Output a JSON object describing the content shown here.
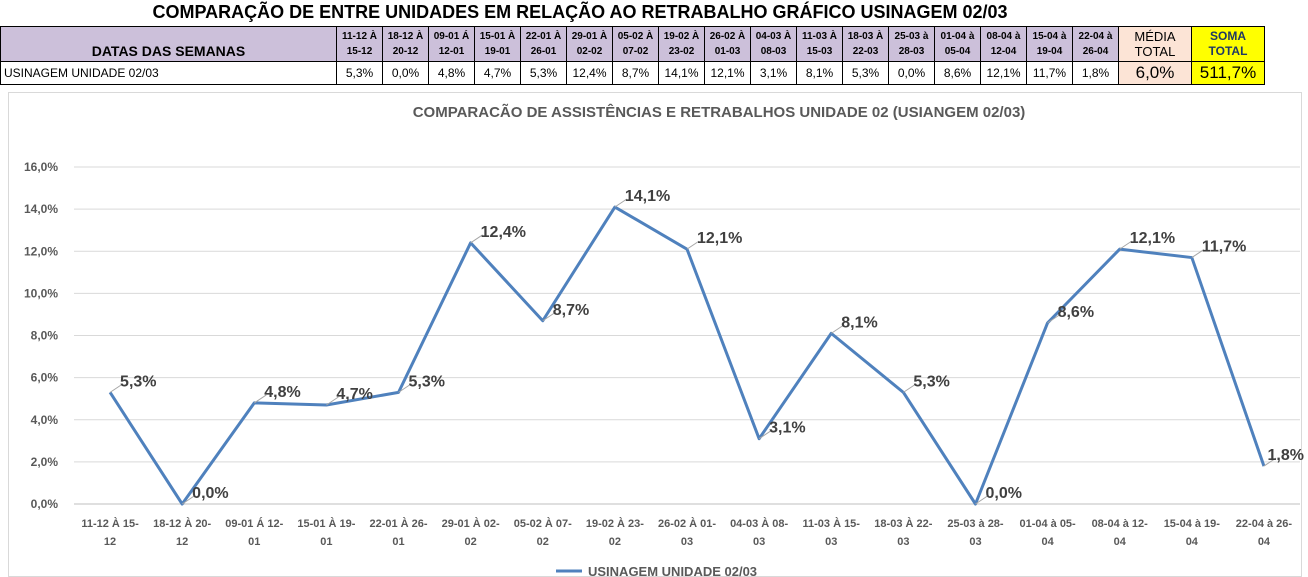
{
  "page_title": "COMPARAÇÃO DE ENTRE UNIDADES EM RELAÇÃO AO RETRABALHO GRÁFICO USINAGEM 02/03",
  "table": {
    "header_label": "DATAS DAS SEMANAS",
    "row_label": "USINAGEM UNIDADE 02/03",
    "weeks": [
      {
        "top": "11-12 À",
        "bottom": "15-12"
      },
      {
        "top": "18-12 À",
        "bottom": "20-12"
      },
      {
        "top": "09-01 Á",
        "bottom": "12-01"
      },
      {
        "top": "15-01 À",
        "bottom": "19-01"
      },
      {
        "top": "22-01 À",
        "bottom": "26-01"
      },
      {
        "top": "29-01 À",
        "bottom": "02-02"
      },
      {
        "top": "05-02 À",
        "bottom": "07-02"
      },
      {
        "top": "19-02 À",
        "bottom": "23-02"
      },
      {
        "top": "26-02 À",
        "bottom": "01-03"
      },
      {
        "top": "04-03 À",
        "bottom": "08-03"
      },
      {
        "top": "11-03 À",
        "bottom": "15-03"
      },
      {
        "top": "18-03 À",
        "bottom": "22-03"
      },
      {
        "top": "25-03 à",
        "bottom": "28-03"
      },
      {
        "top": "01-04 à",
        "bottom": "05-04"
      },
      {
        "top": "08-04 à",
        "bottom": "12-04"
      },
      {
        "top": "15-04 à",
        "bottom": "19-04"
      },
      {
        "top": "22-04 à",
        "bottom": "26-04"
      }
    ],
    "values": [
      "5,3%",
      "0,0%",
      "4,8%",
      "4,7%",
      "5,3%",
      "12,4%",
      "8,7%",
      "14,1%",
      "12,1%",
      "3,1%",
      "8,1%",
      "5,3%",
      "0,0%",
      "8,6%",
      "12,1%",
      "11,7%",
      "1,8%"
    ],
    "media_header_1": "MÉDIA",
    "media_header_2": "TOTAL",
    "media_value": "6,0%",
    "soma_header_1": "SOMA",
    "soma_header_2": "TOTAL",
    "soma_value": "511,7%"
  },
  "chart_data": {
    "type": "line",
    "title": "COMPARACÃO DE ASSISTÊNCIAS E RETRABALHOS UNIDADE 02  (USIANGEM 02/03)",
    "categories": [
      [
        "11-12 À 15-",
        "12"
      ],
      [
        "18-12 À 20-",
        "12"
      ],
      [
        "09-01 Á 12-",
        "01"
      ],
      [
        "15-01 À 19-",
        "01"
      ],
      [
        "22-01 À 26-",
        "01"
      ],
      [
        "29-01 À 02-",
        "02"
      ],
      [
        "05-02 À 07-",
        "02"
      ],
      [
        "19-02 À 23-",
        "02"
      ],
      [
        "26-02 À 01-",
        "03"
      ],
      [
        "04-03 À 08-",
        "03"
      ],
      [
        "11-03 À 15-",
        "03"
      ],
      [
        "18-03 À 22-",
        "03"
      ],
      [
        "25-03 à 28-",
        "03"
      ],
      [
        "01-04 à 05-",
        "04"
      ],
      [
        "08-04 à 12-",
        "04"
      ],
      [
        "15-04 à 19-",
        "04"
      ],
      [
        "22-04 à 26-",
        "04"
      ]
    ],
    "series": [
      {
        "name": "USINAGEM UNIDADE 02/03",
        "values": [
          5.3,
          0.0,
          4.8,
          4.7,
          5.3,
          12.4,
          8.7,
          14.1,
          12.1,
          3.1,
          8.1,
          5.3,
          0.0,
          8.6,
          12.1,
          11.7,
          1.8
        ],
        "labels": [
          "5,3%",
          "0,0%",
          "4,8%",
          "4,7%",
          "5,3%",
          "12,4%",
          "8,7%",
          "14,1%",
          "12,1%",
          "3,1%",
          "8,1%",
          "5,3%",
          "0,0%",
          "8,6%",
          "12,1%",
          "11,7%",
          "1,8%"
        ],
        "color": "#4f81bd"
      }
    ],
    "ylim": [
      0,
      16
    ],
    "ytick_step": 2,
    "ytick_labels": [
      "0,0%",
      "2,0%",
      "4,0%",
      "6,0%",
      "8,0%",
      "10,0%",
      "12,0%",
      "14,0%",
      "16,0%"
    ],
    "grid": true,
    "legend_position": "bottom"
  }
}
